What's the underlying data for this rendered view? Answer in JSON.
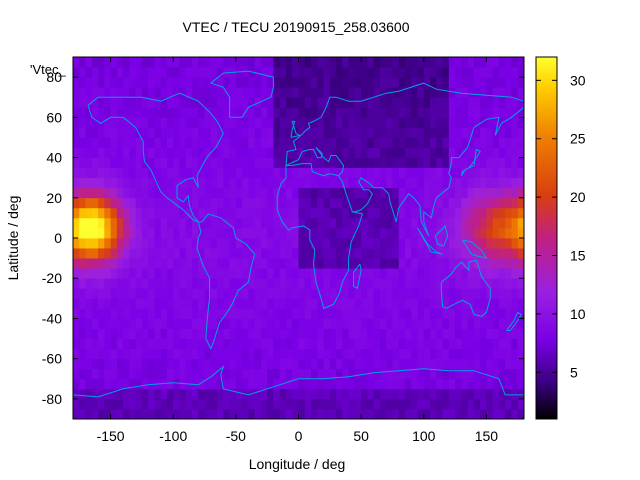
{
  "title": "VTEC / TECU 20190915_258.03600",
  "map_label": "'Vtec_",
  "chart_data": {
    "type": "heatmap",
    "title": "VTEC / TECU 20190915_258.03600",
    "xlabel": "Longitude / deg",
    "ylabel": "Latitude / deg",
    "xlim": [
      -180,
      180
    ],
    "ylim": [
      -90,
      90
    ],
    "x_ticks": [
      -150,
      -100,
      -50,
      0,
      50,
      100,
      150
    ],
    "y_ticks": [
      -80,
      -60,
      -40,
      -20,
      0,
      20,
      40,
      60,
      80
    ],
    "colorbar": {
      "range": [
        1,
        32
      ],
      "ticks": [
        5,
        10,
        15,
        20,
        25,
        30
      ],
      "colors": [
        "#000000",
        "#3a0080",
        "#7a00e6",
        "#9a20e0",
        "#c02080",
        "#d84010",
        "#f08000",
        "#ffd000",
        "#ffff30"
      ]
    },
    "coastline_color": "#00a0e0",
    "hotspots": [
      {
        "lon": -163,
        "lat": 5,
        "peak": 32,
        "sigma_lon": 22,
        "sigma_lat": 16
      },
      {
        "lon": 160,
        "lat": 5,
        "peak": 20,
        "sigma_lon": 30,
        "sigma_lat": 18
      }
    ],
    "background_level": 9
  }
}
